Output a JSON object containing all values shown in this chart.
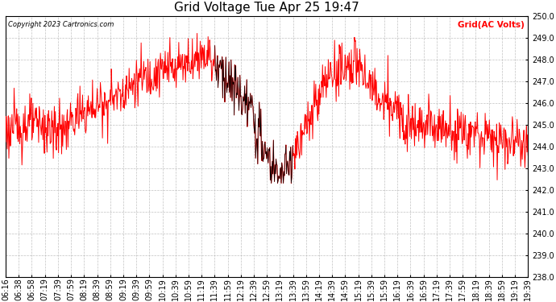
{
  "title": "Grid Voltage Tue Apr 25 19:47",
  "copyright": "Copyright 2023 Cartronics.com",
  "legend_label": "Grid(AC Volts)",
  "legend_color": "#ff0000",
  "line_color": "#ff0000",
  "background_color": "#ffffff",
  "grid_color": "#bbbbbb",
  "ylim": [
    238.0,
    250.0
  ],
  "yticks": [
    238.0,
    239.0,
    240.0,
    241.0,
    242.0,
    243.0,
    244.0,
    245.0,
    246.0,
    247.0,
    248.0,
    249.0,
    250.0
  ],
  "x_labels": [
    "06:16",
    "06:38",
    "06:58",
    "07:19",
    "07:39",
    "07:59",
    "08:19",
    "08:39",
    "08:59",
    "09:19",
    "09:39",
    "09:59",
    "10:19",
    "10:39",
    "10:59",
    "11:19",
    "11:39",
    "11:59",
    "12:19",
    "12:39",
    "12:59",
    "13:19",
    "13:39",
    "13:59",
    "14:19",
    "14:39",
    "14:59",
    "15:19",
    "15:39",
    "15:59",
    "16:19",
    "16:39",
    "16:59",
    "17:19",
    "17:39",
    "17:59",
    "18:19",
    "18:39",
    "18:59",
    "19:19",
    "19:39"
  ],
  "title_fontsize": 11,
  "tick_fontsize": 7,
  "label_fontsize": 7
}
